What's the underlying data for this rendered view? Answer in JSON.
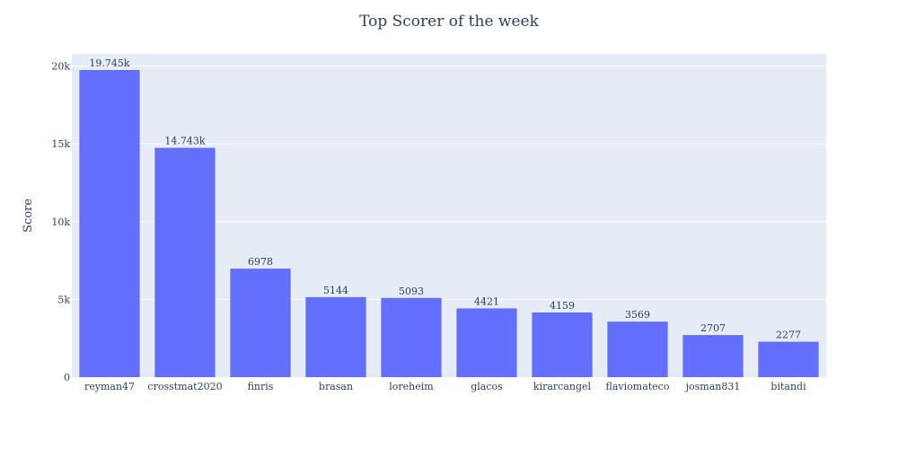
{
  "chart_data": {
    "type": "bar",
    "title": "Top Scorer of the week",
    "xlabel": "",
    "ylabel": "Score",
    "categories": [
      "reyman47",
      "crosstmat2020",
      "finris",
      "brasan",
      "loreheim",
      "glacos",
      "kirarcangel",
      "flaviomateco",
      "josman831",
      "bitandi"
    ],
    "values": [
      19745,
      14743,
      6978,
      5144,
      5093,
      4421,
      4159,
      3569,
      2707,
      2277
    ],
    "value_labels": [
      "19.745k",
      "14.743k",
      "6978",
      "5144",
      "5093",
      "4421",
      "4159",
      "3569",
      "2707",
      "2277"
    ],
    "ylim": [
      0,
      20784
    ],
    "yticks": [
      0,
      5000,
      10000,
      15000,
      20000
    ],
    "ytick_labels": [
      "0",
      "5k",
      "10k",
      "15k",
      "20k"
    ],
    "grid": true,
    "legend": "none",
    "colors": {
      "bar": "#636efa",
      "plot_bg": "#e5ecf6",
      "grid": "#ffffff",
      "text": "#2a3f5f"
    }
  }
}
